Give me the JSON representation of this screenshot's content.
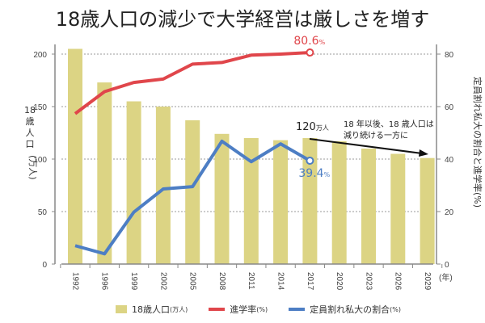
{
  "title": "18歳人口の減少で大学経営は厳しさを増す",
  "colors": {
    "bar": "#dcd484",
    "rate": "#e0464b",
    "unfilled": "#4d7ec4",
    "arrow": "#111111"
  },
  "chart_data": {
    "type": "bar",
    "title": "18歳人口の減少で大学経営は厳しさを増す",
    "categories": [
      "1992",
      "1996",
      "1999",
      "2002",
      "2005",
      "2008",
      "2011",
      "2014",
      "2017",
      "2020",
      "2023",
      "2026",
      "2029"
    ],
    "xlabel": "(年)",
    "ylabel_left": [
      "18",
      "歳",
      "人",
      "口",
      "(万人)"
    ],
    "ylabel_right": "定員割れ私大の割合と進学率(%)",
    "ylim_left": [
      0,
      200
    ],
    "yticks_left": [
      0,
      50,
      100,
      150,
      200
    ],
    "ylim_right": [
      0,
      80
    ],
    "yticks_right": [
      0,
      20,
      40,
      60,
      80
    ],
    "grid": true,
    "series": [
      {
        "name": "18歳人口",
        "unit": "(万人)",
        "type": "bar",
        "axis": "left",
        "values": [
          205,
          173,
          155,
          150,
          137,
          124,
          120,
          118,
          120,
          117,
          110,
          105,
          101
        ]
      },
      {
        "name": "進学率",
        "unit": "(%)",
        "type": "line",
        "axis": "right",
        "values": [
          57.3,
          65.7,
          69.2,
          70.5,
          76.2,
          76.8,
          79.6,
          80.0,
          80.6,
          null,
          null,
          null,
          null
        ]
      },
      {
        "name": "定員割れ私大の割合",
        "unit": "(%)",
        "type": "line",
        "axis": "right",
        "values": [
          7.0,
          3.9,
          19.8,
          28.6,
          29.5,
          46.8,
          39.0,
          45.8,
          39.4,
          null,
          null,
          null,
          null
        ]
      }
    ],
    "annotations": {
      "rate_end": {
        "value": "80.6",
        "unit": "%"
      },
      "unfilled_end": {
        "value": "39.4",
        "unit": "%"
      },
      "pop_2017": {
        "value": "120",
        "unit": "万人"
      },
      "note_line1": "18 年以後、18 歳人口は",
      "note_line2": "減り続ける一方に"
    },
    "legend_position": "bottom"
  },
  "legend": [
    {
      "label": "18歳人口",
      "unit": "(万人)"
    },
    {
      "label": "進学率",
      "unit": "(%)"
    },
    {
      "label": "定員割れ私大の割合",
      "unit": "(%)"
    }
  ]
}
